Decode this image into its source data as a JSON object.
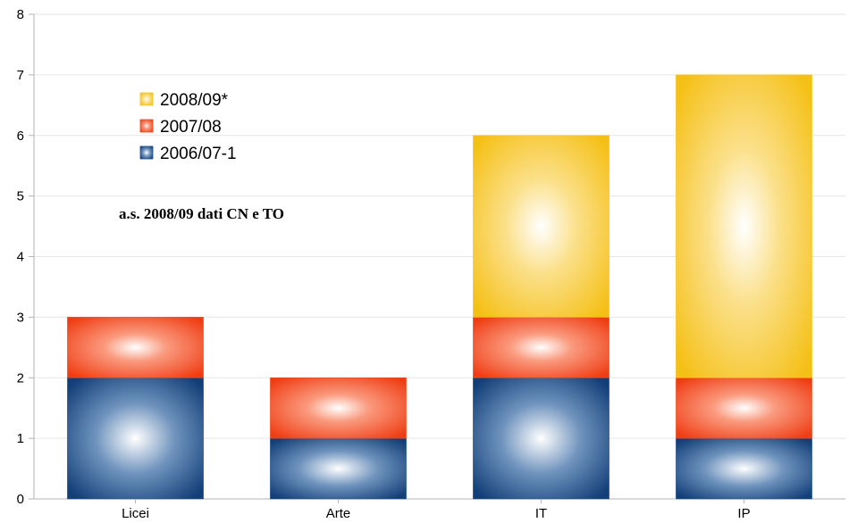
{
  "chart_data": {
    "type": "bar",
    "stacked": true,
    "categories": [
      "Licei",
      "Arte",
      "IT",
      "IP"
    ],
    "series": [
      {
        "name": "2006/07-1",
        "values": [
          2,
          1,
          2,
          1
        ],
        "color": "#1c4f8a"
      },
      {
        "name": "2007/08",
        "values": [
          1,
          1,
          1,
          1
        ],
        "color": "#f24b1f"
      },
      {
        "name": "2008/09*",
        "values": [
          0,
          0,
          3,
          5
        ],
        "color": "#f7c51c"
      }
    ],
    "legend_order": [
      "2008/09*",
      "2007/08",
      "2006/07-1"
    ],
    "legend_position": "top-left",
    "annotation": "a.s. 2008/09 dati CN e TO",
    "title": "",
    "xlabel": "",
    "ylabel": "",
    "ylim": [
      0,
      8
    ],
    "yticks": [
      0,
      1,
      2,
      3,
      4,
      5,
      6,
      7,
      8
    ],
    "grid": true
  }
}
